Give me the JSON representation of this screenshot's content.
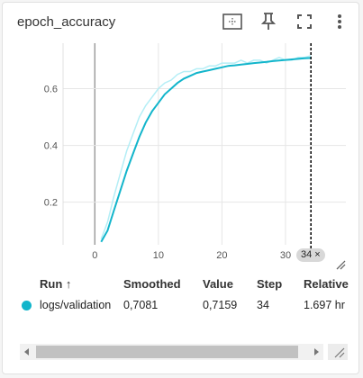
{
  "card": {
    "title": "epoch_accuracy",
    "toolbar": [
      {
        "name": "fit-domain-icon"
      },
      {
        "name": "pin-icon"
      },
      {
        "name": "fullscreen-icon"
      },
      {
        "name": "more-vert-icon"
      }
    ]
  },
  "colors": {
    "smoothed": "#12b5cb",
    "raw": "#b4eef6",
    "grid": "#e6e6e6"
  },
  "chart_data": {
    "type": "line",
    "x_ticks": [
      "0",
      "10",
      "20",
      "30"
    ],
    "y_ticks": [
      "0.2",
      "0.4",
      "0.6"
    ],
    "xlim": [
      -5,
      39.5
    ],
    "ylim": [
      0.05,
      0.76
    ],
    "grid": true,
    "series": [
      {
        "role": "raw",
        "x": [
          1,
          2,
          3,
          4,
          5,
          6,
          7,
          8,
          9,
          10,
          11,
          12,
          13,
          14,
          15,
          16,
          17,
          18,
          19,
          20,
          21,
          22,
          23,
          24,
          25,
          26,
          27,
          28,
          29,
          30,
          31,
          32,
          33,
          34
        ],
        "y": [
          0.07,
          0.13,
          0.22,
          0.3,
          0.38,
          0.44,
          0.5,
          0.54,
          0.57,
          0.6,
          0.62,
          0.63,
          0.65,
          0.66,
          0.66,
          0.67,
          0.67,
          0.68,
          0.68,
          0.69,
          0.69,
          0.69,
          0.7,
          0.69,
          0.7,
          0.7,
          0.69,
          0.7,
          0.71,
          0.7,
          0.7,
          0.71,
          0.71,
          0.7159
        ]
      },
      {
        "role": "smoothed",
        "x": [
          1,
          2,
          3,
          4,
          5,
          6,
          7,
          8,
          9,
          10,
          11,
          12,
          13,
          14,
          15,
          16,
          17,
          18,
          19,
          20,
          21,
          22,
          23,
          24,
          25,
          26,
          27,
          28,
          29,
          30,
          31,
          32,
          33,
          34
        ],
        "y": [
          0.06,
          0.1,
          0.17,
          0.24,
          0.31,
          0.37,
          0.43,
          0.48,
          0.52,
          0.55,
          0.58,
          0.6,
          0.62,
          0.635,
          0.645,
          0.655,
          0.66,
          0.665,
          0.67,
          0.675,
          0.68,
          0.682,
          0.685,
          0.687,
          0.69,
          0.692,
          0.694,
          0.697,
          0.699,
          0.701,
          0.703,
          0.705,
          0.707,
          0.7081
        ]
      }
    ],
    "cursor_step": "34"
  },
  "step_badge": {
    "label": "34",
    "close": "×"
  },
  "table": {
    "headers": [
      "Run ↑",
      "Smoothed",
      "Value",
      "Step",
      "Relative"
    ],
    "row": {
      "run": "logs/validation",
      "smoothed": "0,7081",
      "value": "0,7159",
      "step": "34",
      "relative": "1.697 hr"
    }
  }
}
